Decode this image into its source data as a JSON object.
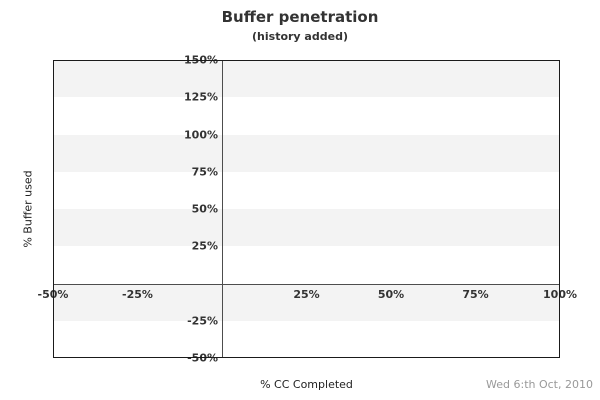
{
  "header": {
    "title": "Buffer penetration",
    "subtitle": "(history added)"
  },
  "footer": {
    "xaxis_label": "% CC Completed",
    "date_label": "Wed 6:th Oct, 2010"
  },
  "colors": {
    "background": "#ffffff",
    "band": "#f3f3f3",
    "plot_border": "#1a1a1a",
    "axis_line": "#4d4d4d",
    "tick_text": "#333333",
    "title_text": "#333333",
    "axis_label_text": "#222222",
    "date_text": "#999999"
  },
  "chart_data": {
    "type": "line",
    "title": "Buffer penetration",
    "subtitle": "(history added)",
    "xlabel": "% CC Completed",
    "ylabel": "% Buffer used",
    "xlim": [
      -50,
      100
    ],
    "ylim": [
      -50,
      150
    ],
    "x_ticks": [
      -50,
      -25,
      25,
      50,
      75,
      100
    ],
    "x_tick_labels": [
      "-50%",
      "-25%",
      "25%",
      "50%",
      "75%",
      "100%"
    ],
    "y_ticks": [
      150,
      125,
      100,
      75,
      50,
      25,
      -25,
      -50
    ],
    "y_tick_labels": [
      "150%",
      "125%",
      "100%",
      "75%",
      "50%",
      "25%",
      "-25%",
      "-50%"
    ],
    "zero_axis_cross": [
      0,
      0
    ],
    "grid": "alternating horizontal gray bands every 25%",
    "band_interval": 25,
    "legend_position": "none",
    "series": []
  }
}
